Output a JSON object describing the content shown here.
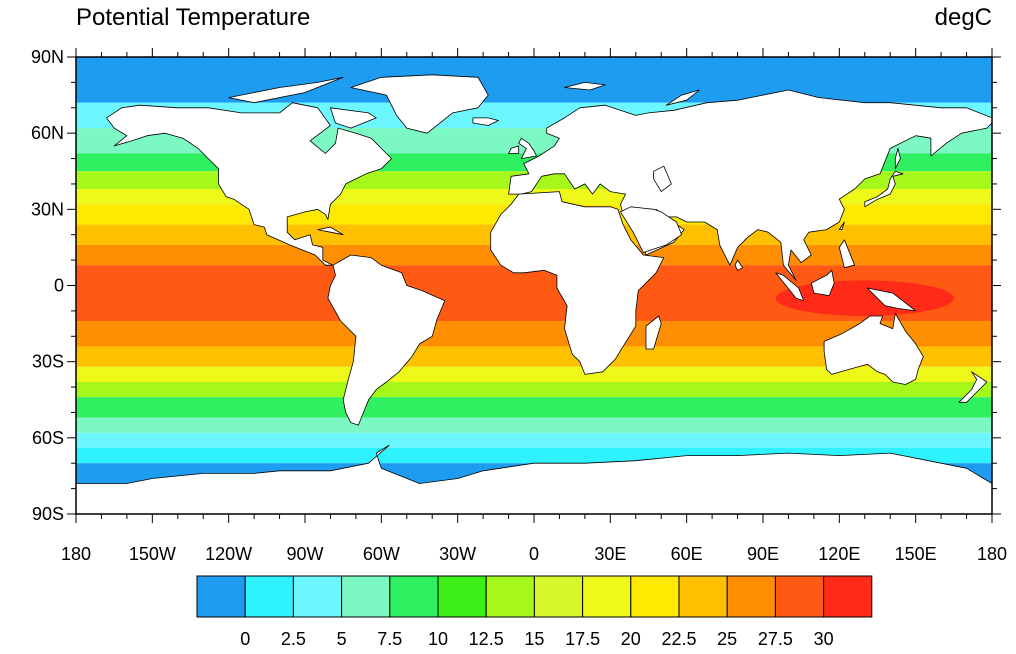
{
  "title": "Potential Temperature",
  "units": "degC",
  "lat_labels": [
    "90N",
    "60N",
    "30N",
    "0",
    "30S",
    "60S",
    "90S"
  ],
  "lon_labels": [
    "180",
    "150W",
    "120W",
    "90W",
    "60W",
    "30W",
    "0",
    "30E",
    "60E",
    "90E",
    "120E",
    "150E",
    "180"
  ],
  "colorbar": {
    "colors": [
      "#1e9cf0",
      "#2ef2ff",
      "#6cf7ff",
      "#7cf9c3",
      "#2ef061",
      "#3cef17",
      "#a6f71a",
      "#d6f72a",
      "#eef91a",
      "#ffe900",
      "#ffc000",
      "#ff8f00",
      "#ff5a13",
      "#ff2a18"
    ],
    "labels": [
      "0",
      "2.5",
      "5",
      "7.5",
      "10",
      "12.5",
      "15",
      "17.5",
      "20",
      "22.5",
      "25",
      "27.5",
      "30"
    ]
  },
  "ocean_bands": [
    {
      "lat_top": 90,
      "lat_bottom": 72,
      "color": "#1e9cf0"
    },
    {
      "lat_top": 72,
      "lat_bottom": 62,
      "color": "#6cf7ff"
    },
    {
      "lat_top": 62,
      "lat_bottom": 52,
      "color": "#7cf9c3"
    },
    {
      "lat_top": 52,
      "lat_bottom": 45,
      "color": "#2ef061"
    },
    {
      "lat_top": 45,
      "lat_bottom": 38,
      "color": "#a6f71a"
    },
    {
      "lat_top": 38,
      "lat_bottom": 32,
      "color": "#eef91a"
    },
    {
      "lat_top": 32,
      "lat_bottom": 24,
      "color": "#ffe900"
    },
    {
      "lat_top": 24,
      "lat_bottom": 16,
      "color": "#ffc000"
    },
    {
      "lat_top": 16,
      "lat_bottom": 8,
      "color": "#ff8f00"
    },
    {
      "lat_top": 8,
      "lat_bottom": -14,
      "color": "#ff5a13"
    },
    {
      "lat_top": -14,
      "lat_bottom": -24,
      "color": "#ff8f00"
    },
    {
      "lat_top": -24,
      "lat_bottom": -32,
      "color": "#ffc000"
    },
    {
      "lat_top": -32,
      "lat_bottom": -38,
      "color": "#eef91a"
    },
    {
      "lat_top": -38,
      "lat_bottom": -44,
      "color": "#a6f71a"
    },
    {
      "lat_top": -44,
      "lat_bottom": -52,
      "color": "#2ef061"
    },
    {
      "lat_top": -52,
      "lat_bottom": -58,
      "color": "#7cf9c3"
    },
    {
      "lat_top": -58,
      "lat_bottom": -64,
      "color": "#6cf7ff"
    },
    {
      "lat_top": -64,
      "lat_bottom": -70,
      "color": "#2ef2ff"
    },
    {
      "lat_top": -70,
      "lat_bottom": -90,
      "color": "#1e9cf0"
    }
  ],
  "warm_pools": [
    {
      "name": "west-pacific-warm-pool",
      "lon_min": 95,
      "lon_max": 165,
      "lat_min": -12,
      "lat_max": 2,
      "color": "#ff2a18"
    }
  ],
  "land_color": "#ffffff",
  "coast_color": "#000000"
}
